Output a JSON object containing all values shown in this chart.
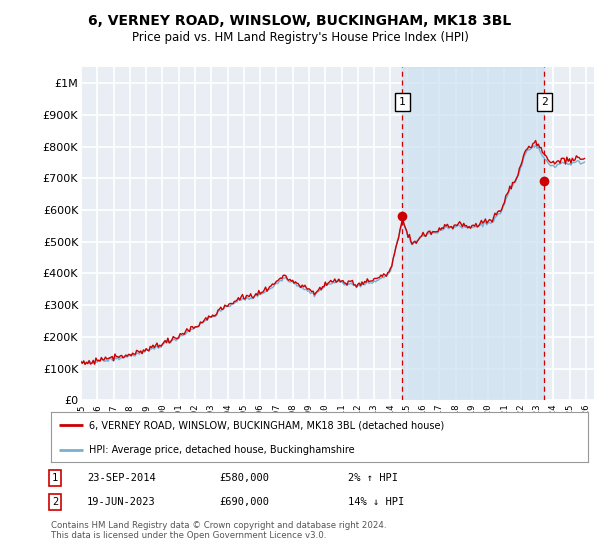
{
  "title": "6, VERNEY ROAD, WINSLOW, BUCKINGHAM, MK18 3BL",
  "subtitle": "Price paid vs. HM Land Registry's House Price Index (HPI)",
  "legend_line1": "6, VERNEY ROAD, WINSLOW, BUCKINGHAM, MK18 3BL (detached house)",
  "legend_line2": "HPI: Average price, detached house, Buckinghamshire",
  "annotation1_label": "1",
  "annotation1_date": "23-SEP-2014",
  "annotation1_price": "£580,000",
  "annotation1_hpi": "2% ↑ HPI",
  "annotation2_label": "2",
  "annotation2_date": "19-JUN-2023",
  "annotation2_price": "£690,000",
  "annotation2_hpi": "14% ↓ HPI",
  "footer": "Contains HM Land Registry data © Crown copyright and database right 2024.\nThis data is licensed under the Open Government Licence v3.0.",
  "red_color": "#cc0000",
  "blue_color": "#7aafd4",
  "fill_color": "#cce0f0",
  "bg_color": "#e8eef4",
  "grid_color": "#ffffff",
  "sale1_year": 2014.73,
  "sale1_value": 580000,
  "sale2_year": 2023.46,
  "sale2_value": 690000,
  "ylim": [
    0,
    1050000
  ],
  "xlim_start": 1995.0,
  "xlim_end": 2026.5
}
